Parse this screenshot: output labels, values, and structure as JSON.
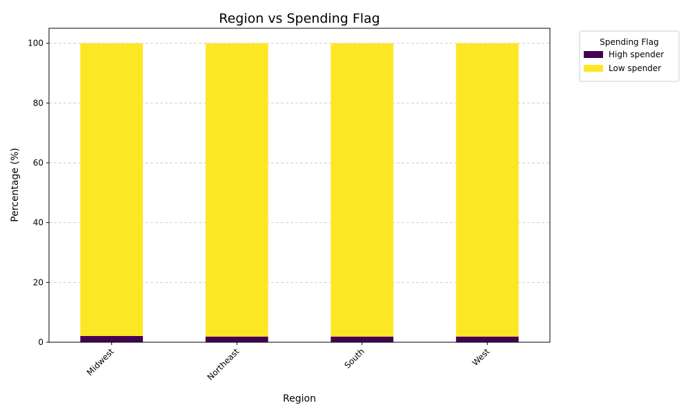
{
  "chart_data": {
    "type": "bar",
    "stacked": true,
    "title": "Region vs Spending Flag",
    "xlabel": "Region",
    "ylabel": "Percentage (%)",
    "categories": [
      "Midwest",
      "Northeast",
      "South",
      "West"
    ],
    "series": [
      {
        "name": "High spender",
        "color": "#440154",
        "values": [
          2.1,
          1.9,
          1.9,
          1.9
        ]
      },
      {
        "name": "Low spender",
        "color": "#fde725",
        "values": [
          97.9,
          98.1,
          98.1,
          98.1
        ]
      }
    ],
    "ylim": [
      0,
      105
    ],
    "yticks": [
      0,
      20,
      40,
      60,
      80,
      100
    ],
    "grid": "y-dashed",
    "legend": {
      "title": "Spending Flag",
      "placement": "outside-top-right"
    }
  }
}
